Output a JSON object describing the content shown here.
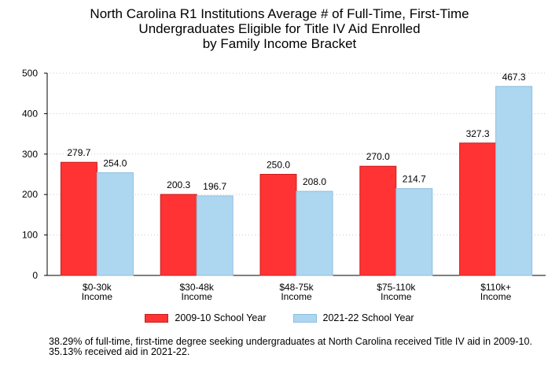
{
  "title_lines": [
    "North Carolina R1 Institutions Average # of Full-Time, First-Time",
    "Undergraduates Eligible for Title IV Aid Enrolled",
    "by Family Income Bracket"
  ],
  "colors": {
    "series_2009": "#ff3333",
    "series_2009_border": "#c81e1e",
    "series_2021": "#add6f0",
    "series_2021_border": "#8ebfe0"
  },
  "chart_data": {
    "type": "bar",
    "title": "North Carolina R1 Institutions Average # of Full-Time, First-Time Undergraduates Eligible for Title IV Aid Enrolled by Family Income Bracket",
    "categories": [
      [
        "$0-30k",
        "Income"
      ],
      [
        "$30-48k",
        "Income"
      ],
      [
        "$48-75k",
        "Income"
      ],
      [
        "$75-110k",
        "Income"
      ],
      [
        "$110k+",
        "Income"
      ]
    ],
    "series": [
      {
        "name": "2009-10 School Year",
        "values": [
          279.7,
          200.3,
          250.0,
          270.0,
          327.3
        ],
        "labels": [
          "279.7",
          "200.3",
          "250.0",
          "270.0",
          "327.3"
        ]
      },
      {
        "name": "2021-22 School Year",
        "values": [
          254.0,
          196.7,
          208.0,
          214.7,
          467.3
        ],
        "labels": [
          "254.0",
          "196.7",
          "208.0",
          "214.7",
          "467.3"
        ]
      }
    ],
    "ylim": [
      0,
      500
    ],
    "yticks": [
      "0",
      "100",
      "200",
      "300",
      "400",
      "500"
    ],
    "grid": "dotted horizontal",
    "legend_position": "bottom"
  },
  "legend": {
    "item_1": "2009-10 School Year",
    "item_2": "2021-22 School Year"
  },
  "footnote": "38.29% of full-time, first-time degree seeking undergraduates at North Carolina received Title IV aid in 2009-10. 35.13% received aid in 2021-22."
}
